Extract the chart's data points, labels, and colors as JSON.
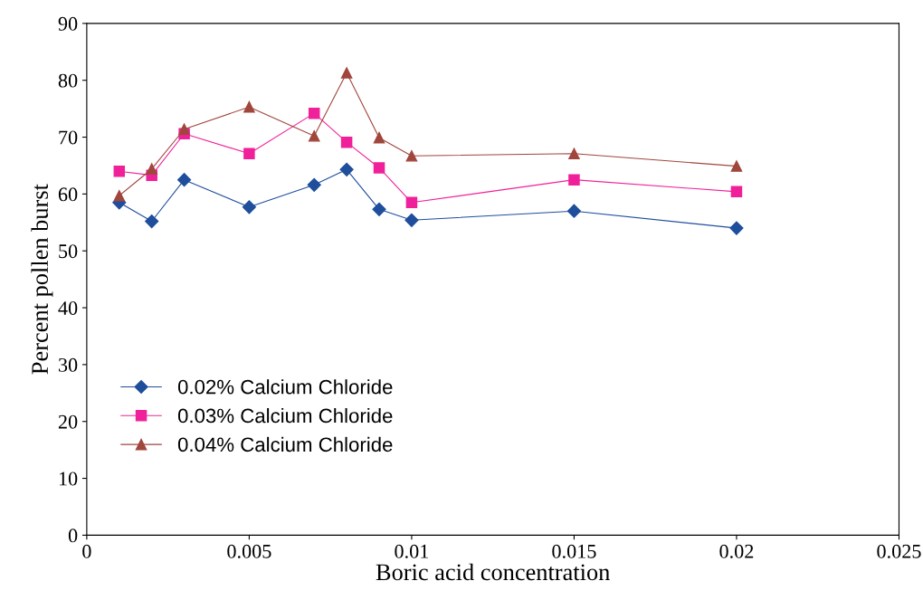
{
  "chart_data": {
    "type": "line",
    "xlabel": "Boric acid concentration",
    "ylabel": "Percent pollen burst",
    "x": [
      0.001,
      0.002,
      0.003,
      0.005,
      0.007,
      0.008,
      0.009,
      0.01,
      0.015,
      0.02
    ],
    "series": [
      {
        "name": "0.02% Calcium Chloride",
        "color": "#1f4e9c",
        "marker": "diamond",
        "values": [
          58.5,
          55.2,
          62.5,
          57.7,
          61.6,
          64.3,
          57.3,
          55.4,
          57.0,
          54.0
        ]
      },
      {
        "name": "0.03% Calcium Chloride",
        "color": "#f0209a",
        "marker": "square",
        "values": [
          64.0,
          63.3,
          70.6,
          67.1,
          74.2,
          69.1,
          64.6,
          58.5,
          62.5,
          60.4
        ]
      },
      {
        "name": "0.04% Calcium Chloride",
        "color": "#a0463c",
        "marker": "triangle",
        "values": [
          59.7,
          64.4,
          71.4,
          75.3,
          70.2,
          81.3,
          69.9,
          66.7,
          67.1,
          64.9
        ]
      }
    ],
    "xlim": [
      0,
      0.025
    ],
    "xticks": [
      0,
      0.005,
      0.01,
      0.015,
      0.02,
      0.025
    ],
    "ylim": [
      0,
      90
    ],
    "yticks": [
      0,
      10,
      20,
      30,
      40,
      50,
      60,
      70,
      80,
      90
    ],
    "grid": false,
    "legend": "bottom left",
    "line_style": "solid"
  }
}
